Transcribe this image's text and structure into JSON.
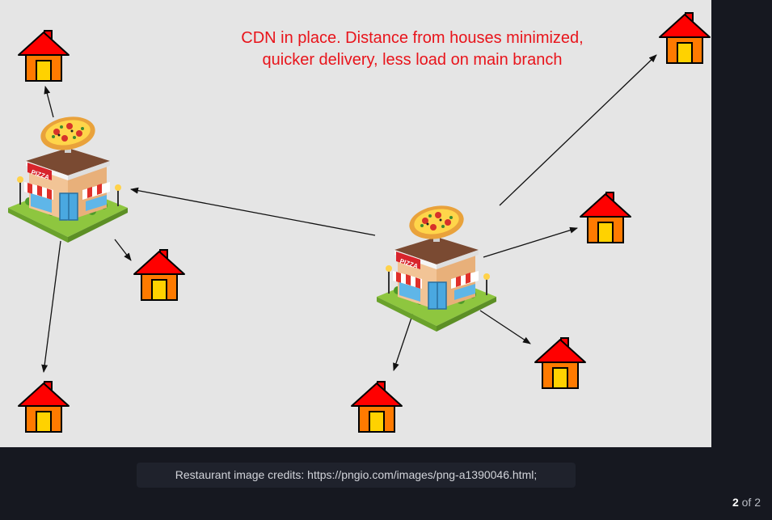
{
  "slide": {
    "headline": [
      "CDN in place. Distance from houses minimized,",
      "quicker delivery, less load on main branch"
    ],
    "restaurants": [
      {
        "icon": "pizza-restaurant-icon",
        "sign": "PIZZA"
      },
      {
        "icon": "pizza-restaurant-icon",
        "sign": "PIZZA"
      }
    ],
    "houses_icon": "house-icon",
    "colors": {
      "headline": "#e8141b",
      "roof": "#ff0000",
      "wall": "#ff7a00",
      "door": "#ffd200",
      "arrow": "#111111"
    }
  },
  "caption": "Restaurant image credits: https://pngio.com/images/png-a1390046.html;",
  "pager": {
    "current": "2",
    "separator": "of",
    "total": "2"
  }
}
